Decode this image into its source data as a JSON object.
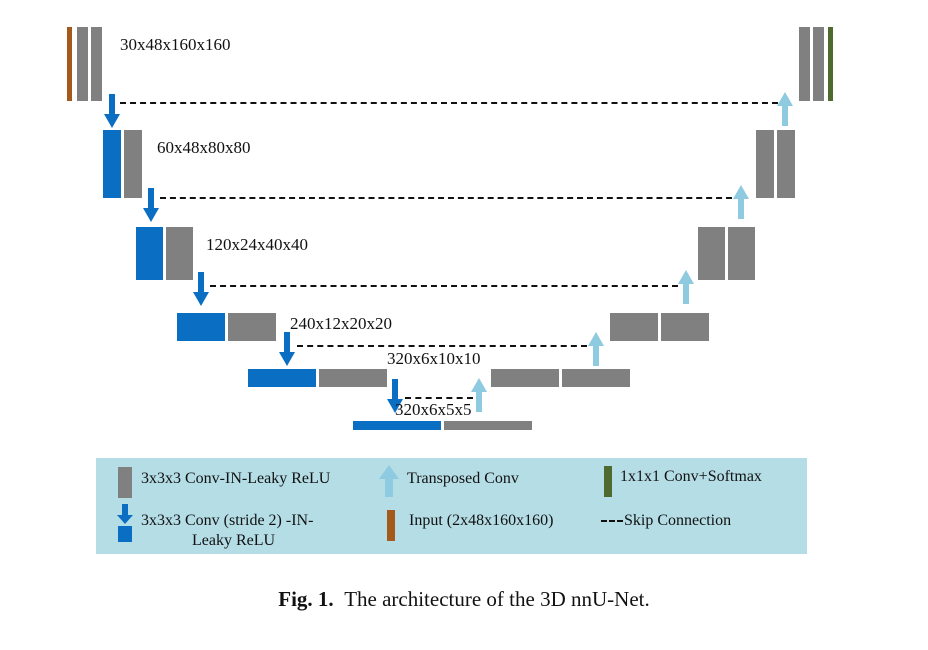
{
  "encoder": {
    "level1_label": "30x48x160x160",
    "level2_label": "60x48x80x80",
    "level3_label": "120x24x40x40",
    "level4_label": "240x12x20x20",
    "level5_label": "320x6x10x10",
    "bottleneck_label": "320x6x5x5"
  },
  "legend": {
    "conv_in_leaky": "3x3x3 Conv-IN-Leaky ReLU",
    "transposed_conv": "Transposed Conv",
    "conv_softmax": "1x1x1 Conv+Softmax",
    "strided_conv_line1": "3x3x3 Conv (stride 2) -IN-",
    "strided_conv_line2": "Leaky ReLU",
    "input": "Input (2x48x160x160)",
    "skip": "Skip Connection"
  },
  "caption": {
    "prefix": "Fig. 1.",
    "text": "The architecture of the 3D nnU-Net."
  },
  "colors": {
    "conv_gray": "#808080",
    "strided_blue": "#0a6fc2",
    "transposed_lightblue": "#8ecae0",
    "input_brown": "#a35a1a",
    "softmax_green": "#4f6a2e",
    "legend_bg": "#b4dde6"
  }
}
